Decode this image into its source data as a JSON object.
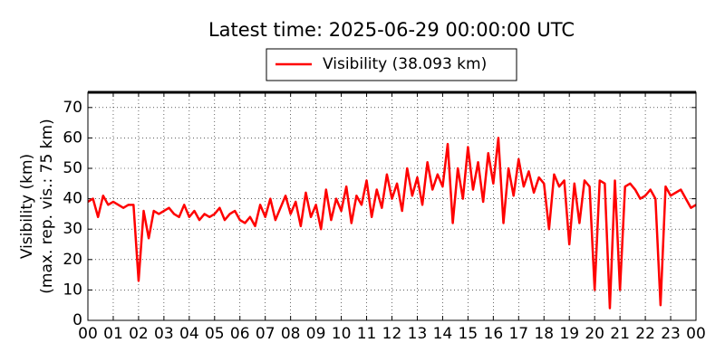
{
  "chart_data": {
    "type": "line",
    "title": "Latest time: 2025-06-29 00:00:00 UTC",
    "ylabel": [
      "Visibility (km)",
      "(max. rep. vis.: 75 km)"
    ],
    "x": [
      0,
      0.2,
      0.4,
      0.6,
      0.8,
      1,
      1.2,
      1.4,
      1.6,
      1.8,
      2,
      2.2,
      2.4,
      2.6,
      2.8,
      3,
      3.2,
      3.4,
      3.6,
      3.8,
      4,
      4.2,
      4.4,
      4.6,
      4.8,
      5,
      5.2,
      5.4,
      5.6,
      5.8,
      6,
      6.2,
      6.4,
      6.6,
      6.8,
      7,
      7.2,
      7.4,
      7.6,
      7.8,
      8,
      8.2,
      8.4,
      8.6,
      8.8,
      9,
      9.2,
      9.4,
      9.6,
      9.8,
      10,
      10.2,
      10.4,
      10.6,
      10.8,
      11,
      11.2,
      11.4,
      11.6,
      11.8,
      12,
      12.2,
      12.4,
      12.6,
      12.8,
      13,
      13.2,
      13.4,
      13.6,
      13.8,
      14,
      14.2,
      14.4,
      14.6,
      14.8,
      15,
      15.2,
      15.4,
      15.6,
      15.8,
      16,
      16.2,
      16.4,
      16.6,
      16.8,
      17,
      17.2,
      17.4,
      17.6,
      17.8,
      18,
      18.2,
      18.4,
      18.6,
      18.8,
      19,
      19.2,
      19.4,
      19.6,
      19.8,
      20,
      20.2,
      20.4,
      20.6,
      20.8,
      21,
      21.2,
      21.4,
      21.6,
      21.8,
      22,
      22.2,
      22.4,
      22.6,
      22.8,
      23,
      23.2,
      23.4,
      23.6,
      23.8,
      24
    ],
    "series": [
      {
        "name": "Visibility (38.093 km)",
        "color": "#ff0000",
        "values": [
          39,
          40,
          34,
          41,
          38,
          39,
          38,
          37,
          38,
          38,
          13,
          36,
          27,
          36,
          35,
          36,
          37,
          35,
          34,
          38,
          34,
          36,
          33,
          35,
          34,
          35,
          37,
          33,
          35,
          36,
          33,
          32,
          34,
          31,
          38,
          34,
          40,
          33,
          37,
          41,
          35,
          39,
          31,
          42,
          34,
          38,
          30,
          43,
          33,
          40,
          36,
          44,
          32,
          41,
          38,
          46,
          34,
          43,
          37,
          48,
          40,
          45,
          36,
          50,
          41,
          47,
          38,
          52,
          43,
          48,
          44,
          58,
          32,
          50,
          40,
          57,
          43,
          52,
          39,
          55,
          45,
          60,
          32,
          50,
          41,
          53,
          44,
          49,
          42,
          47,
          45,
          30,
          48,
          44,
          46,
          25,
          45,
          32,
          46,
          44,
          10,
          46,
          45,
          4,
          46,
          10,
          44,
          45,
          43,
          40,
          41,
          43,
          40,
          5,
          44,
          41,
          42,
          43,
          40,
          37,
          38
        ]
      }
    ],
    "xlim": [
      0,
      24
    ],
    "xticks": [
      {
        "value": 0,
        "label": "00"
      },
      {
        "value": 1,
        "label": "01"
      },
      {
        "value": 2,
        "label": "02"
      },
      {
        "value": 3,
        "label": "03"
      },
      {
        "value": 4,
        "label": "04"
      },
      {
        "value": 5,
        "label": "05"
      },
      {
        "value": 6,
        "label": "06"
      },
      {
        "value": 7,
        "label": "07"
      },
      {
        "value": 8,
        "label": "08"
      },
      {
        "value": 9,
        "label": "09"
      },
      {
        "value": 10,
        "label": "10"
      },
      {
        "value": 11,
        "label": "11"
      },
      {
        "value": 12,
        "label": "12"
      },
      {
        "value": 13,
        "label": "13"
      },
      {
        "value": 14,
        "label": "14"
      },
      {
        "value": 15,
        "label": "15"
      },
      {
        "value": 16,
        "label": "16"
      },
      {
        "value": 17,
        "label": "17"
      },
      {
        "value": 18,
        "label": "18"
      },
      {
        "value": 19,
        "label": "19"
      },
      {
        "value": 20,
        "label": "20"
      },
      {
        "value": 21,
        "label": "21"
      },
      {
        "value": 22,
        "label": "22"
      },
      {
        "value": 23,
        "label": "23"
      },
      {
        "value": 24,
        "label": "00"
      }
    ],
    "ylim": [
      0,
      75
    ],
    "yticks": [
      0,
      10,
      20,
      30,
      40,
      50,
      60,
      70
    ],
    "grid": true
  }
}
